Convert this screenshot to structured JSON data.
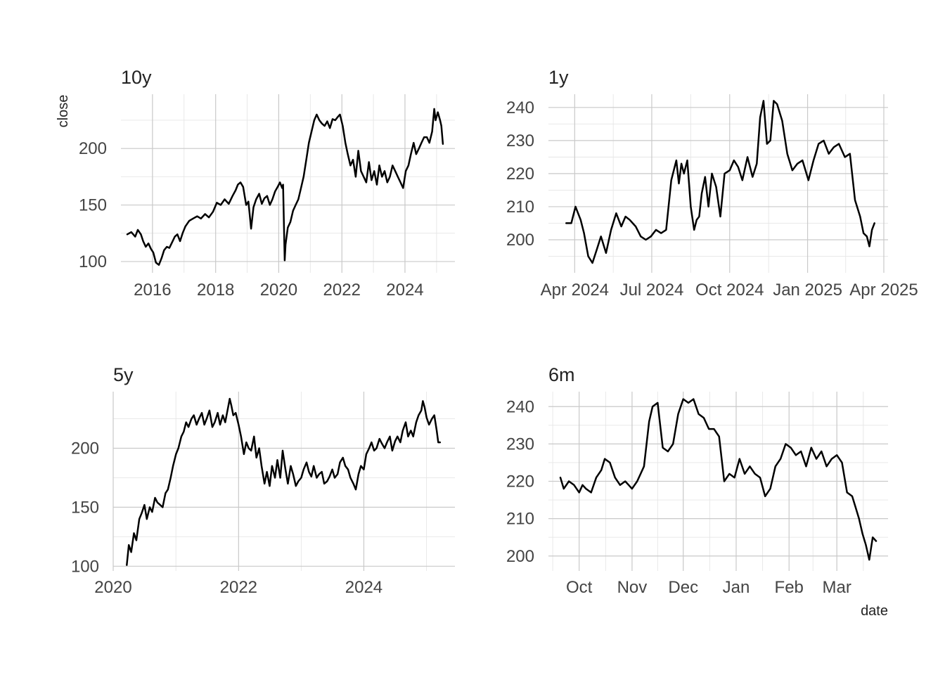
{
  "figure": {
    "ylabel": "close",
    "xlabel": "date"
  },
  "chart_data": [
    {
      "type": "line",
      "title": "10y",
      "x_type": "date",
      "xlim": [
        "2015-01-01",
        "2025-08-01"
      ],
      "ylim": [
        90,
        248
      ],
      "x_ticks": [
        {
          "value": "2016-01-01",
          "label": "2016"
        },
        {
          "value": "2018-01-01",
          "label": "2018"
        },
        {
          "value": "2020-01-01",
          "label": "2020"
        },
        {
          "value": "2022-01-01",
          "label": "2022"
        },
        {
          "value": "2024-01-01",
          "label": "2024"
        }
      ],
      "y_ticks": [
        100,
        150,
        200
      ],
      "grid": true,
      "series": [
        {
          "x": [
            "2015-03-15",
            "2015-05-01",
            "2015-06-15",
            "2015-07-15",
            "2015-08-20",
            "2015-09-15",
            "2015-10-15",
            "2015-11-15",
            "2015-12-15",
            "2016-01-10",
            "2016-02-10",
            "2016-03-15",
            "2016-04-15",
            "2016-05-15",
            "2016-06-15",
            "2016-07-15",
            "2016-08-15",
            "2016-09-15",
            "2016-10-15",
            "2016-11-15",
            "2016-12-15",
            "2017-01-15",
            "2017-03-01",
            "2017-04-15",
            "2017-06-01",
            "2017-07-15",
            "2017-09-01",
            "2017-10-15",
            "2017-12-01",
            "2018-01-15",
            "2018-03-01",
            "2018-04-15",
            "2018-06-01",
            "2018-07-15",
            "2018-08-20",
            "2018-09-15",
            "2018-10-15",
            "2018-11-15",
            "2018-12-20",
            "2019-01-15",
            "2019-02-15",
            "2019-03-15",
            "2019-04-15",
            "2019-05-20",
            "2019-06-20",
            "2019-07-20",
            "2019-08-20",
            "2019-09-20",
            "2019-10-20",
            "2019-11-20",
            "2019-12-20",
            "2020-01-15",
            "2020-02-10",
            "2020-02-20",
            "2020-03-10",
            "2020-03-20",
            "2020-04-15",
            "2020-05-15",
            "2020-06-15",
            "2020-07-15",
            "2020-08-15",
            "2020-09-15",
            "2020-10-15",
            "2020-11-15",
            "2020-12-15",
            "2021-01-15",
            "2021-02-15",
            "2021-03-15",
            "2021-04-15",
            "2021-05-15",
            "2021-06-15",
            "2021-07-15",
            "2021-08-15",
            "2021-09-15",
            "2021-10-15",
            "2021-11-15",
            "2021-12-10",
            "2022-01-10",
            "2022-02-10",
            "2022-03-10",
            "2022-04-10",
            "2022-05-10",
            "2022-06-10",
            "2022-07-10",
            "2022-08-10",
            "2022-09-10",
            "2022-10-10",
            "2022-11-10",
            "2022-12-10",
            "2023-01-10",
            "2023-02-10",
            "2023-03-10",
            "2023-04-10",
            "2023-05-10",
            "2023-06-10",
            "2023-07-10",
            "2023-08-10",
            "2023-09-10",
            "2023-10-10",
            "2023-11-10",
            "2023-12-10",
            "2024-01-10",
            "2024-02-10",
            "2024-03-10",
            "2024-04-10",
            "2024-05-10",
            "2024-06-10",
            "2024-07-10",
            "2024-08-10",
            "2024-09-10",
            "2024-10-10",
            "2024-11-10",
            "2024-12-05",
            "2024-12-20",
            "2025-01-15",
            "2025-02-10",
            "2025-02-25",
            "2025-03-15"
          ],
          "y": [
            124,
            126,
            122,
            128,
            124,
            118,
            113,
            116,
            111,
            108,
            99,
            97,
            103,
            110,
            113,
            112,
            117,
            122,
            124,
            118,
            125,
            131,
            136,
            138,
            140,
            138,
            142,
            139,
            144,
            152,
            150,
            155,
            151,
            158,
            163,
            168,
            170,
            166,
            150,
            153,
            129,
            148,
            155,
            160,
            151,
            156,
            158,
            150,
            155,
            162,
            166,
            170,
            165,
            168,
            101,
            115,
            130,
            135,
            145,
            150,
            155,
            165,
            175,
            190,
            205,
            215,
            225,
            230,
            225,
            222,
            220,
            224,
            218,
            226,
            225,
            228,
            230,
            220,
            205,
            195,
            185,
            190,
            175,
            198,
            180,
            175,
            170,
            188,
            172,
            180,
            168,
            185,
            175,
            180,
            170,
            175,
            185,
            180,
            175,
            170,
            165,
            180,
            185,
            195,
            205,
            195,
            200,
            205,
            210,
            210,
            205,
            215,
            235,
            225,
            232,
            225,
            220,
            204
          ]
        }
      ]
    },
    {
      "type": "line",
      "title": "1y",
      "x_type": "date",
      "xlim": [
        "2024-03-01",
        "2025-04-06"
      ],
      "ylim": [
        190,
        244
      ],
      "x_ticks": [
        {
          "value": "2024-04-01",
          "label": "Apr 2024"
        },
        {
          "value": "2024-07-01",
          "label": "Jul 2024"
        },
        {
          "value": "2024-10-01",
          "label": "Oct 2024"
        },
        {
          "value": "2025-01-01",
          "label": "Jan 2025"
        },
        {
          "value": "2025-04-01",
          "label": "Apr 2025"
        }
      ],
      "y_ticks": [
        200,
        210,
        220,
        230,
        240
      ],
      "grid": true,
      "series": [
        {
          "x": [
            "2024-03-22",
            "2024-03-28",
            "2024-04-02",
            "2024-04-08",
            "2024-04-12",
            "2024-04-17",
            "2024-04-22",
            "2024-04-27",
            "2024-05-02",
            "2024-05-08",
            "2024-05-14",
            "2024-05-20",
            "2024-05-26",
            "2024-05-31",
            "2024-06-05",
            "2024-06-12",
            "2024-06-18",
            "2024-06-24",
            "2024-06-30",
            "2024-07-06",
            "2024-07-12",
            "2024-07-18",
            "2024-07-24",
            "2024-07-30",
            "2024-08-02",
            "2024-08-05",
            "2024-08-08",
            "2024-08-12",
            "2024-08-16",
            "2024-08-20",
            "2024-08-23",
            "2024-08-26",
            "2024-08-29",
            "2024-09-02",
            "2024-09-06",
            "2024-09-10",
            "2024-09-15",
            "2024-09-20",
            "2024-09-25",
            "2024-10-01",
            "2024-10-06",
            "2024-10-11",
            "2024-10-16",
            "2024-10-22",
            "2024-10-28",
            "2024-11-02",
            "2024-11-06",
            "2024-11-10",
            "2024-11-14",
            "2024-11-18",
            "2024-11-22",
            "2024-11-26",
            "2024-12-02",
            "2024-12-08",
            "2024-12-14",
            "2024-12-20",
            "2024-12-26",
            "2025-01-02",
            "2025-01-08",
            "2025-01-14",
            "2025-01-20",
            "2025-01-26",
            "2025-02-01",
            "2025-02-07",
            "2025-02-14",
            "2025-02-20",
            "2025-02-26",
            "2025-03-04",
            "2025-03-08",
            "2025-03-12",
            "2025-03-15",
            "2025-03-18",
            "2025-03-21"
          ],
          "y": [
            205,
            205,
            210,
            206,
            202,
            195,
            193,
            197,
            201,
            196,
            203,
            208,
            204,
            207,
            206,
            204,
            201,
            200,
            201,
            203,
            202,
            203,
            218,
            224,
            217,
            223,
            220,
            224,
            210,
            203,
            206,
            207,
            214,
            219,
            210,
            220,
            216,
            207,
            220,
            221,
            224,
            222,
            218,
            225,
            219,
            223,
            237,
            242,
            229,
            230,
            242,
            241,
            236,
            226,
            221,
            223,
            224,
            218,
            224,
            229,
            230,
            226,
            228,
            229,
            225,
            226,
            212,
            207,
            202,
            201,
            198,
            203,
            205
          ]
        }
      ]
    },
    {
      "type": "line",
      "title": "5y",
      "x_type": "date",
      "xlim": [
        "2020-01-01",
        "2025-06-15"
      ],
      "ylim": [
        96,
        248
      ],
      "x_ticks": [
        {
          "value": "2020-01-01",
          "label": "2020"
        },
        {
          "value": "2022-01-01",
          "label": "2022"
        },
        {
          "value": "2024-01-01",
          "label": "2024"
        }
      ],
      "y_ticks": [
        100,
        150,
        200
      ],
      "grid": true,
      "series": [
        {
          "x": [
            "2020-03-20",
            "2020-04-01",
            "2020-04-15",
            "2020-05-01",
            "2020-05-15",
            "2020-06-01",
            "2020-06-15",
            "2020-07-01",
            "2020-07-15",
            "2020-08-01",
            "2020-08-15",
            "2020-09-01",
            "2020-09-15",
            "2020-10-01",
            "2020-10-15",
            "2020-11-01",
            "2020-11-15",
            "2020-12-01",
            "2020-12-15",
            "2021-01-01",
            "2021-01-15",
            "2021-02-01",
            "2021-02-15",
            "2021-03-01",
            "2021-03-15",
            "2021-04-01",
            "2021-04-15",
            "2021-05-01",
            "2021-05-15",
            "2021-06-01",
            "2021-06-15",
            "2021-07-01",
            "2021-07-15",
            "2021-08-01",
            "2021-08-15",
            "2021-09-01",
            "2021-09-15",
            "2021-10-01",
            "2021-10-15",
            "2021-11-01",
            "2021-11-10",
            "2021-11-20",
            "2021-12-01",
            "2021-12-15",
            "2022-01-01",
            "2022-01-15",
            "2022-02-01",
            "2022-02-15",
            "2022-03-01",
            "2022-03-15",
            "2022-04-01",
            "2022-04-15",
            "2022-05-01",
            "2022-05-15",
            "2022-06-01",
            "2022-06-15",
            "2022-07-01",
            "2022-07-15",
            "2022-08-01",
            "2022-08-15",
            "2022-09-01",
            "2022-09-15",
            "2022-10-01",
            "2022-10-15",
            "2022-11-01",
            "2022-11-15",
            "2022-12-01",
            "2022-12-15",
            "2023-01-01",
            "2023-01-15",
            "2023-02-01",
            "2023-02-15",
            "2023-03-01",
            "2023-03-15",
            "2023-04-01",
            "2023-04-15",
            "2023-05-01",
            "2023-05-15",
            "2023-06-01",
            "2023-06-15",
            "2023-07-01",
            "2023-07-15",
            "2023-08-01",
            "2023-08-15",
            "2023-09-01",
            "2023-09-15",
            "2023-10-01",
            "2023-10-15",
            "2023-11-01",
            "2023-11-15",
            "2023-12-01",
            "2023-12-15",
            "2024-01-01",
            "2024-01-15",
            "2024-02-01",
            "2024-02-15",
            "2024-03-01",
            "2024-03-15",
            "2024-04-01",
            "2024-04-15",
            "2024-05-01",
            "2024-05-15",
            "2024-06-01",
            "2024-06-15",
            "2024-07-01",
            "2024-07-15",
            "2024-08-01",
            "2024-08-15",
            "2024-09-01",
            "2024-09-15",
            "2024-10-01",
            "2024-10-15",
            "2024-11-01",
            "2024-11-15",
            "2024-12-01",
            "2024-12-10",
            "2024-12-20",
            "2025-01-01",
            "2025-01-15",
            "2025-02-01",
            "2025-02-15",
            "2025-03-01",
            "2025-03-10",
            "2025-03-20"
          ],
          "y": [
            101,
            118,
            112,
            128,
            122,
            140,
            145,
            152,
            140,
            150,
            146,
            158,
            154,
            152,
            150,
            162,
            165,
            175,
            185,
            195,
            200,
            210,
            214,
            222,
            218,
            225,
            228,
            220,
            225,
            230,
            220,
            226,
            232,
            218,
            222,
            230,
            220,
            228,
            222,
            235,
            242,
            236,
            228,
            230,
            220,
            210,
            195,
            205,
            200,
            198,
            210,
            192,
            200,
            185,
            170,
            180,
            168,
            185,
            175,
            190,
            175,
            198,
            182,
            170,
            185,
            178,
            168,
            172,
            175,
            182,
            188,
            180,
            176,
            185,
            175,
            178,
            180,
            170,
            172,
            176,
            182,
            175,
            178,
            188,
            192,
            185,
            182,
            175,
            170,
            165,
            178,
            185,
            182,
            195,
            200,
            205,
            198,
            200,
            208,
            204,
            200,
            205,
            210,
            198,
            206,
            210,
            205,
            215,
            222,
            210,
            215,
            210,
            222,
            228,
            232,
            240,
            235,
            226,
            220,
            225,
            228,
            215,
            205,
            205
          ]
        }
      ]
    },
    {
      "type": "line",
      "title": "6m",
      "x_type": "date",
      "xlim": [
        "2024-09-13",
        "2025-03-31"
      ],
      "ylim": [
        196,
        244
      ],
      "x_ticks": [
        {
          "value": "2024-10-01",
          "label": "Oct"
        },
        {
          "value": "2024-11-01",
          "label": "Nov"
        },
        {
          "value": "2024-12-01",
          "label": "Dec"
        },
        {
          "value": "2025-01-01",
          "label": "Jan"
        },
        {
          "value": "2025-02-01",
          "label": "Feb"
        },
        {
          "value": "2025-03-01",
          "label": "Mar"
        }
      ],
      "y_ticks": [
        200,
        210,
        220,
        230,
        240
      ],
      "grid": true,
      "series": [
        {
          "x": [
            "2024-09-20",
            "2024-09-22",
            "2024-09-25",
            "2024-09-28",
            "2024-10-01",
            "2024-10-03",
            "2024-10-05",
            "2024-10-08",
            "2024-10-11",
            "2024-10-14",
            "2024-10-16",
            "2024-10-19",
            "2024-10-22",
            "2024-10-25",
            "2024-10-28",
            "2024-10-30",
            "2024-11-01",
            "2024-11-04",
            "2024-11-06",
            "2024-11-08",
            "2024-11-11",
            "2024-11-13",
            "2024-11-16",
            "2024-11-19",
            "2024-11-22",
            "2024-11-25",
            "2024-11-28",
            "2024-12-01",
            "2024-12-04",
            "2024-12-07",
            "2024-12-10",
            "2024-12-13",
            "2024-12-16",
            "2024-12-19",
            "2024-12-22",
            "2024-12-25",
            "2024-12-28",
            "2024-12-31",
            "2025-01-03",
            "2025-01-06",
            "2025-01-09",
            "2025-01-12",
            "2025-01-15",
            "2025-01-18",
            "2025-01-21",
            "2025-01-24",
            "2025-01-27",
            "2025-01-30",
            "2025-02-02",
            "2025-02-05",
            "2025-02-08",
            "2025-02-11",
            "2025-02-14",
            "2025-02-17",
            "2025-02-20",
            "2025-02-23",
            "2025-02-26",
            "2025-03-01",
            "2025-03-04",
            "2025-03-07",
            "2025-03-10",
            "2025-03-12",
            "2025-03-14",
            "2025-03-16",
            "2025-03-18",
            "2025-03-20",
            "2025-03-22",
            "2025-03-24"
          ],
          "y": [
            221,
            218,
            220,
            219,
            217,
            219,
            218,
            217,
            221,
            223,
            226,
            225,
            221,
            219,
            220,
            219,
            218,
            220,
            222,
            224,
            236,
            240,
            241,
            229,
            228,
            230,
            238,
            242,
            241,
            242,
            238,
            237,
            234,
            234,
            232,
            220,
            222,
            221,
            226,
            222,
            224,
            222,
            221,
            216,
            218,
            224,
            226,
            230,
            229,
            227,
            228,
            224,
            229,
            226,
            228,
            224,
            226,
            227,
            225,
            217,
            216,
            213,
            210,
            206,
            203,
            199,
            205,
            204
          ]
        }
      ]
    }
  ]
}
